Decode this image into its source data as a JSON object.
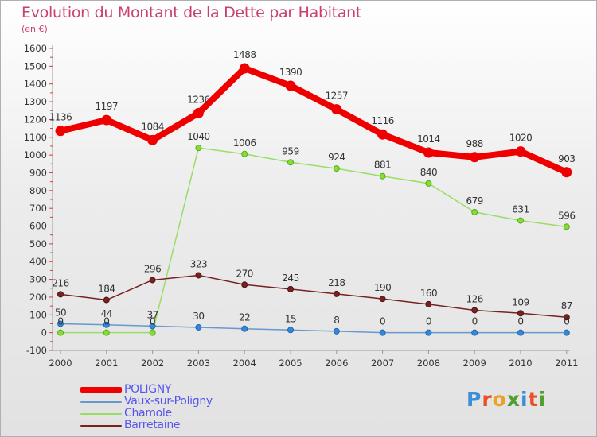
{
  "title": "Evolution du Montant de la Dette par Habitant",
  "subtitle": "(en €)",
  "logo": {
    "text": "Proxiti",
    "colors": [
      "#3b8fd9",
      "#e8502a",
      "#f0a020",
      "#50a030",
      "#3b8fd9",
      "#e8502a",
      "#50a030"
    ]
  },
  "chart_data": {
    "type": "line",
    "title": "Evolution du Montant de la Dette par Habitant",
    "subtitle": "(en €)",
    "x": [
      "2000",
      "2001",
      "2002",
      "2003",
      "2004",
      "2005",
      "2006",
      "2007",
      "2008",
      "2009",
      "2010",
      "2011"
    ],
    "y_ticks": [
      "-100",
      "0",
      "100",
      "200",
      "300",
      "400",
      "500",
      "600",
      "700",
      "800",
      "900",
      "1000",
      "1100",
      "1200",
      "1300",
      "1400",
      "1500",
      "1600"
    ],
    "ylim": [
      -100,
      1600
    ],
    "grid": false,
    "legend_position": "bottom-left",
    "series": [
      {
        "name": "POLIGNY",
        "color": "#ee0000",
        "values": [
          1136,
          1197,
          1084,
          1236,
          1488,
          1390,
          1257,
          1116,
          1014,
          988,
          1020,
          903
        ],
        "labels": [
          "1136",
          "1197",
          "1084",
          "1236",
          "1488",
          "1390",
          "1257",
          "1116",
          "1014",
          "988",
          "1020",
          "903"
        ]
      },
      {
        "name": "Vaux-sur-Poligny",
        "color": "#6699cc",
        "values": [
          50,
          44,
          37,
          30,
          22,
          15,
          8,
          0,
          0,
          0,
          0,
          0
        ],
        "labels": [
          "50",
          "44",
          "37",
          "30",
          "22",
          "15",
          "8",
          "0",
          "0",
          "0",
          "0",
          "0"
        ]
      },
      {
        "name": "Chamole",
        "color": "#99dd66",
        "values": [
          0,
          0,
          0,
          1040,
          1006,
          959,
          924,
          881,
          840,
          679,
          631,
          596
        ],
        "labels": [
          "0",
          "0",
          "0",
          "1040",
          "1006",
          "959",
          "924",
          "881",
          "840",
          "679",
          "631",
          "596"
        ]
      },
      {
        "name": "Barretaine",
        "color": "#772222",
        "values": [
          216,
          184,
          296,
          323,
          270,
          245,
          218,
          190,
          160,
          126,
          109,
          87
        ],
        "labels": [
          "216",
          "184",
          "296",
          "323",
          "270",
          "245",
          "218",
          "190",
          "160",
          "126",
          "109",
          "87"
        ]
      }
    ]
  }
}
